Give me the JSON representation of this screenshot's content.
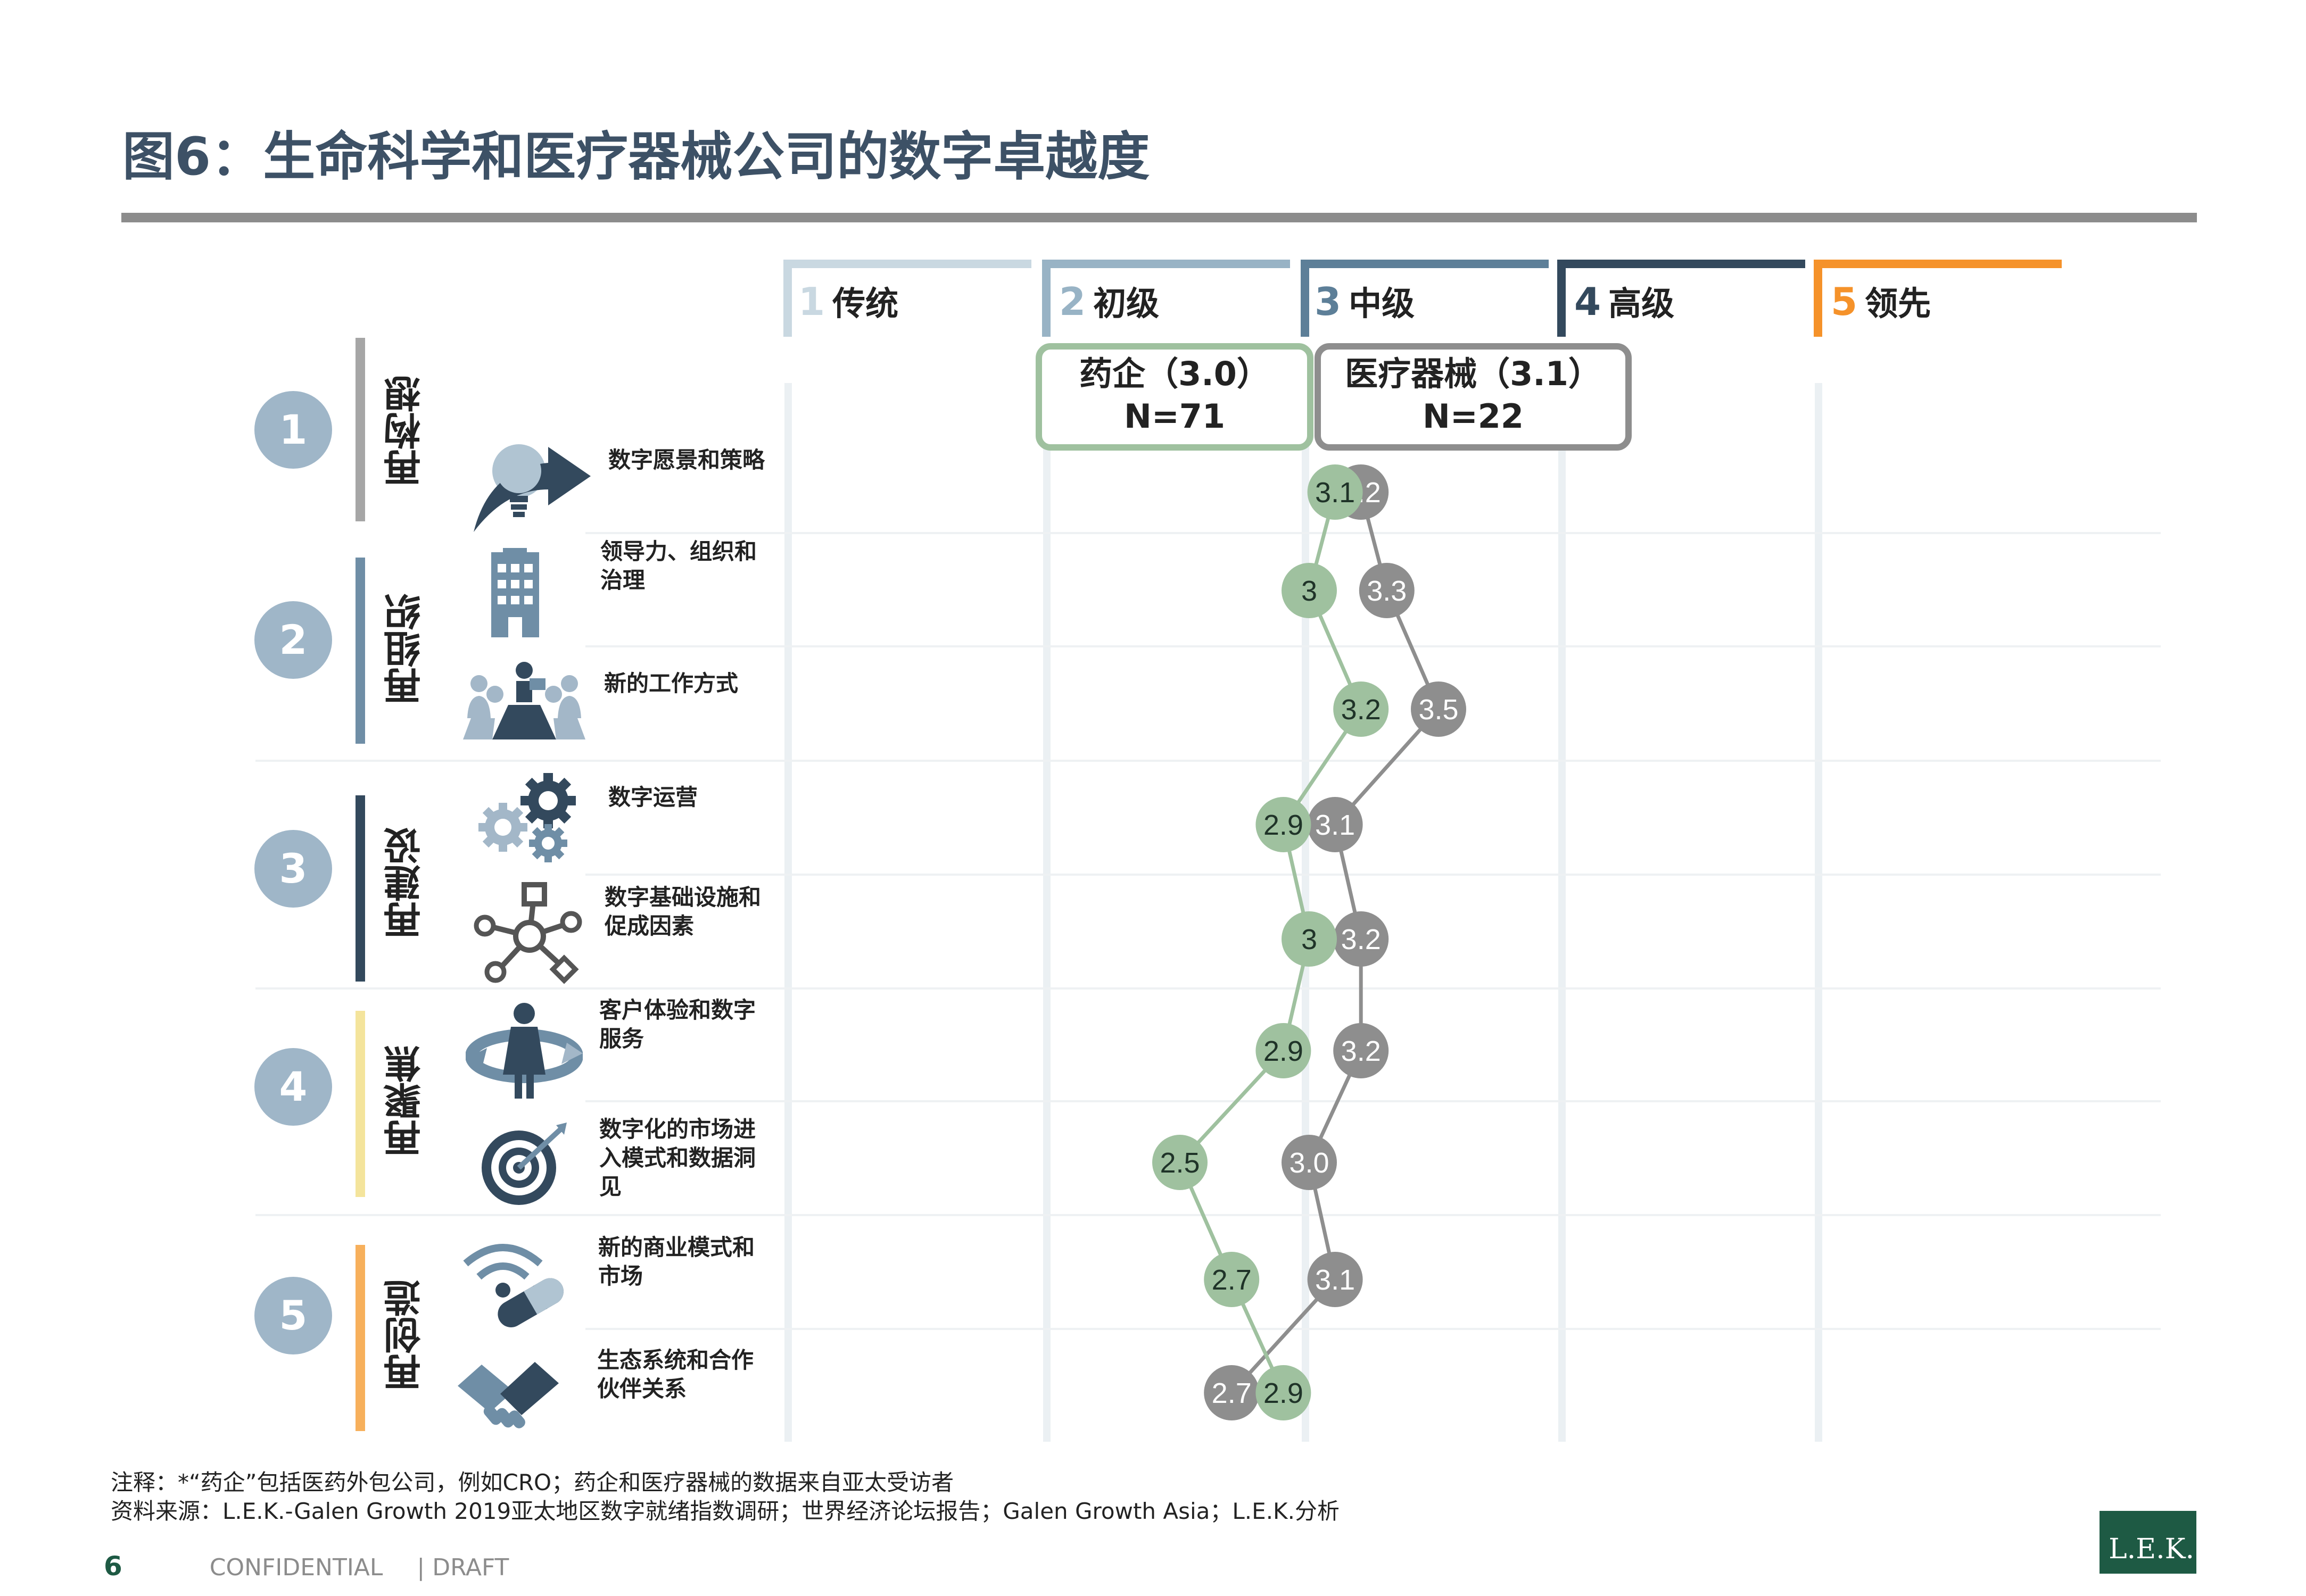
{
  "title": "图6：生命科学和医疗器械公司的数字卓越度",
  "levels": [
    {
      "num": "1",
      "label": "传统",
      "color": "#c9d8e1",
      "num_color": "#c9d8e1"
    },
    {
      "num": "2",
      "label": "初级",
      "color": "#98b3c5",
      "num_color": "#98b3c5"
    },
    {
      "num": "3",
      "label": "中级",
      "color": "#5d7f98",
      "num_color": "#5d7f98"
    },
    {
      "num": "4",
      "label": "高级",
      "color": "#33495d",
      "num_color": "#33495d"
    },
    {
      "num": "5",
      "label": "领先",
      "color": "#f5922a",
      "num_color": "#f5922a"
    }
  ],
  "groups": [
    {
      "num": "1",
      "label": "再构想",
      "color": "#a6a6a6"
    },
    {
      "num": "2",
      "label": "再组织",
      "color": "#6f8ea6"
    },
    {
      "num": "3",
      "label": "再建设",
      "color": "#33495d"
    },
    {
      "num": "4",
      "label": "再聚焦",
      "color": "#f4e49c"
    },
    {
      "num": "5",
      "label": "再创造",
      "color": "#f7b05c"
    }
  ],
  "capabilities": [
    {
      "label": "数字愿景和策略",
      "icon": "lightbulb-arrow-icon"
    },
    {
      "label": "领导力、组织和治理",
      "icon": "office-building-icon"
    },
    {
      "label": "新的工作方式",
      "icon": "team-meeting-icon"
    },
    {
      "label": "数字运营",
      "icon": "gears-icon"
    },
    {
      "label": "数字基础设施和促成因素",
      "icon": "network-nodes-icon"
    },
    {
      "label": "客户体验和数字服务",
      "icon": "customer-cycle-icon"
    },
    {
      "label": "数字化的市场进入模式和数据洞见",
      "icon": "target-dart-icon"
    },
    {
      "label": "新的商业模式和市场",
      "icon": "wireless-pill-icon"
    },
    {
      "label": "生态系统和合作伙伴关系",
      "icon": "handshake-icon"
    }
  ],
  "legend": {
    "pharma": {
      "line1": "药企（3.0）",
      "line2": "N=71"
    },
    "device": {
      "line1": "医疗器械（3.1）",
      "line2": "N=22"
    }
  },
  "chart_data": {
    "type": "line",
    "x_axis": "maturity level",
    "xlim": [
      1,
      5
    ],
    "categories": [
      "数字愿景和策略",
      "领导力、组织和治理",
      "新的工作方式",
      "数字运营",
      "数字基础设施和促成因素",
      "客户体验和数字服务",
      "数字化的市场进入模式和数据洞见",
      "新的商业模式和市场",
      "生态系统和合作伙伴关系"
    ],
    "series": [
      {
        "name": "药企（3.0）",
        "color": "#9fc19f",
        "values": [
          3.1,
          3.0,
          3.2,
          2.9,
          3.0,
          2.9,
          2.5,
          2.7,
          2.9
        ],
        "labels": [
          "3.1",
          "3",
          "3.2",
          "2.9",
          "3",
          "2.9",
          "2.5",
          "2.7",
          "2.9"
        ]
      },
      {
        "name": "医疗器械（3.1）",
        "color": "#8e8e8e",
        "values": [
          3.2,
          3.3,
          3.5,
          3.1,
          3.2,
          3.2,
          3.0,
          3.1,
          2.7
        ],
        "labels": [
          "3.2",
          "3.3",
          "3.5",
          "3.1",
          "3.2",
          "3.2",
          "3.0",
          "3.1",
          "2.7"
        ]
      }
    ]
  },
  "footnote": {
    "note": "注释：*“药企”包括医药外包公司，例如CRO；药企和医疗器械的数据来自亚太受访者",
    "source": "资料来源：L.E.K.-Galen Growth 2019亚太地区数字就绪指数调研；世界经济论坛报告；Galen Growth Asia；L.E.K.分析"
  },
  "footer": {
    "page": "6",
    "confidential": "CONFIDENTIAL",
    "draft": "| DRAFT"
  },
  "logo": "L.E.K."
}
